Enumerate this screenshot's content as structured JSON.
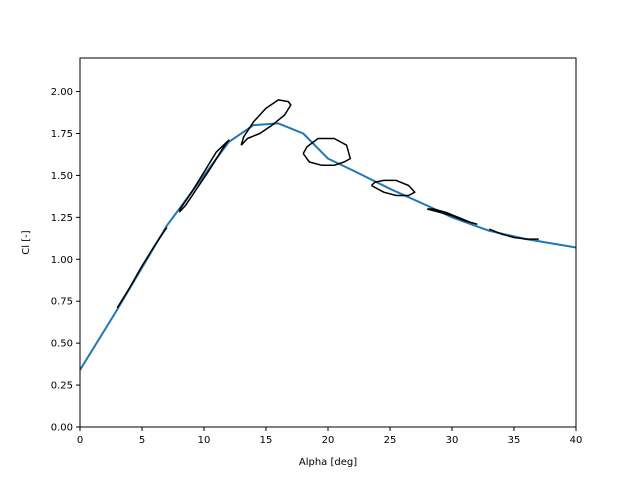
{
  "chart_data": {
    "type": "line",
    "title": "",
    "xlabel": "Alpha [deg]",
    "ylabel": "Cl [-]",
    "xlim": [
      0,
      40
    ],
    "ylim": [
      0,
      2.2
    ],
    "grid": false,
    "xticks": [
      0,
      5,
      10,
      15,
      20,
      25,
      30,
      35,
      40
    ],
    "xtick_labels": [
      "0",
      "5",
      "10",
      "15",
      "20",
      "25",
      "30",
      "35",
      "40"
    ],
    "yticks": [
      0.0,
      0.25,
      0.5,
      0.75,
      1.0,
      1.25,
      1.5,
      1.75,
      2.0
    ],
    "ytick_labels": [
      "0.00",
      "0.25",
      "0.50",
      "0.75",
      "1.00",
      "1.25",
      "1.50",
      "1.75",
      "2.00"
    ],
    "series": [
      {
        "color": "#1f77b4",
        "x": [
          0,
          3,
          7,
          12,
          14,
          16,
          18,
          20,
          22,
          25,
          28,
          30,
          33,
          36,
          40
        ],
        "y": [
          0.34,
          0.7,
          1.2,
          1.7,
          1.8,
          1.81,
          1.75,
          1.6,
          1.53,
          1.42,
          1.32,
          1.25,
          1.17,
          1.12,
          1.07
        ]
      },
      {
        "color": "#000000",
        "x": [
          3,
          4,
          5,
          6,
          7
        ],
        "y": [
          0.71,
          0.83,
          0.96,
          1.08,
          1.19
        ]
      },
      {
        "color": "#000000",
        "x": [
          8,
          9,
          10,
          11,
          12,
          11.5,
          10.5,
          9.5,
          8.5,
          8
        ],
        "y": [
          1.29,
          1.4,
          1.52,
          1.64,
          1.71,
          1.66,
          1.54,
          1.43,
          1.32,
          1.28
        ]
      },
      {
        "color": "#000000",
        "x": [
          13,
          13.5,
          14.5,
          15.5,
          16.5,
          17,
          16.8,
          16,
          15,
          14,
          13.2,
          13
        ],
        "y": [
          1.68,
          1.72,
          1.75,
          1.8,
          1.86,
          1.92,
          1.94,
          1.95,
          1.9,
          1.82,
          1.73,
          1.68
        ]
      },
      {
        "color": "#000000",
        "x": [
          18,
          18.5,
          19.5,
          20.5,
          21.3,
          21.8,
          21.5,
          20.5,
          19.2,
          18.3,
          18
        ],
        "y": [
          1.63,
          1.58,
          1.56,
          1.56,
          1.58,
          1.6,
          1.68,
          1.72,
          1.72,
          1.67,
          1.63
        ]
      },
      {
        "color": "#000000",
        "x": [
          23.5,
          24.5,
          25.5,
          26.5,
          27,
          26.5,
          25.5,
          24.5,
          23.8,
          23.5
        ],
        "y": [
          1.44,
          1.4,
          1.38,
          1.38,
          1.4,
          1.44,
          1.47,
          1.47,
          1.46,
          1.44
        ]
      },
      {
        "color": "#000000",
        "x": [
          28,
          29,
          30,
          31,
          32,
          31.5,
          30.5,
          29.5,
          28.5,
          28
        ],
        "y": [
          1.3,
          1.28,
          1.26,
          1.23,
          1.21,
          1.22,
          1.25,
          1.28,
          1.3,
          1.3
        ]
      },
      {
        "color": "#000000",
        "x": [
          33,
          34,
          35,
          36,
          37
        ],
        "y": [
          1.18,
          1.15,
          1.13,
          1.12,
          1.12
        ]
      }
    ]
  }
}
